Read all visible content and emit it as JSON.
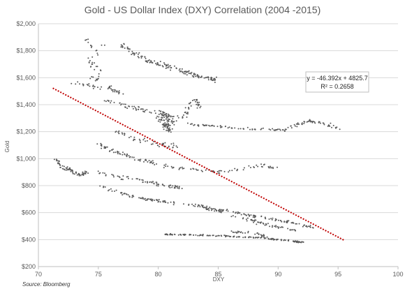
{
  "chart_data": {
    "type": "scatter",
    "title": "Gold - US Dollar Index (DXY) Correlation (2004 -2015)",
    "xlabel": "DXY",
    "ylabel": "Gold",
    "xlim": [
      70,
      100
    ],
    "ylim": [
      200,
      2000
    ],
    "x_ticks": [
      "70",
      "75",
      "80",
      "85",
      "90",
      "95",
      "100"
    ],
    "y_ticks": [
      "$200",
      "$400",
      "$600",
      "$800",
      "$1,000",
      "$1,200",
      "$1,400",
      "$1,600",
      "$1,800",
      "$2,000"
    ],
    "grid": "horizontal",
    "point_color": "#595959",
    "trendline": {
      "equation": "y = -46.392x + 4825.7",
      "r_squared": "R² = 0.2658",
      "slope": -46.392,
      "intercept": 4825.7,
      "x_range": [
        71.2,
        95.5
      ],
      "color": "#c00000",
      "style": "dotted"
    },
    "source": "Source: Bloomberg",
    "clusters": [
      {
        "points": [
          [
            74.0,
            1880
          ],
          [
            74.5,
            1830
          ],
          [
            75.0,
            1780
          ],
          [
            74.2,
            1720
          ],
          [
            75.3,
            1650
          ],
          [
            74.7,
            1580
          ],
          [
            74.3,
            1620
          ],
          [
            75.5,
            1860
          ]
        ],
        "spread": [
          0.3,
          30
        ],
        "count": 40
      },
      {
        "points": [
          [
            77.0,
            1840
          ],
          [
            78.0,
            1780
          ],
          [
            79.0,
            1730
          ],
          [
            80.0,
            1700
          ],
          [
            81.0,
            1680
          ],
          [
            82.0,
            1650
          ],
          [
            83.0,
            1620
          ],
          [
            84.0,
            1600
          ],
          [
            85.0,
            1580
          ]
        ],
        "spread": [
          0.35,
          25
        ],
        "count": 150
      },
      {
        "points": [
          [
            73.0,
            1560
          ],
          [
            74.5,
            1540
          ],
          [
            76.0,
            1520
          ],
          [
            77.0,
            1480
          ]
        ],
        "spread": [
          0.4,
          25
        ],
        "count": 40
      },
      {
        "points": [
          [
            75.5,
            1440
          ],
          [
            77.0,
            1400
          ],
          [
            78.5,
            1370
          ],
          [
            80.0,
            1330
          ],
          [
            81.0,
            1310
          ],
          [
            82.0,
            1300
          ],
          [
            83.0,
            1440
          ],
          [
            83.5,
            1380
          ]
        ],
        "spread": [
          0.4,
          25
        ],
        "count": 100
      },
      {
        "points": [
          [
            79.8,
            1320
          ],
          [
            80.3,
            1280
          ],
          [
            80.6,
            1240
          ],
          [
            81.0,
            1210
          ],
          [
            80.2,
            1350
          ],
          [
            81.4,
            1260
          ]
        ],
        "spread": [
          0.35,
          40
        ],
        "count": 90
      },
      {
        "points": [
          [
            82.0,
            1260
          ],
          [
            83.5,
            1250
          ],
          [
            85.0,
            1240
          ],
          [
            86.5,
            1230
          ],
          [
            88.0,
            1220
          ],
          [
            89.5,
            1215
          ],
          [
            90.5,
            1210
          ],
          [
            91.5,
            1250
          ],
          [
            92.5,
            1280
          ],
          [
            94.0,
            1260
          ],
          [
            95.0,
            1220
          ]
        ],
        "spread": [
          0.45,
          15
        ],
        "count": 120
      },
      {
        "points": [
          [
            76.5,
            1200
          ],
          [
            78.0,
            1150
          ],
          [
            79.5,
            1120
          ],
          [
            80.5,
            1100
          ],
          [
            81.5,
            1090
          ]
        ],
        "spread": [
          0.4,
          25
        ],
        "count": 50
      },
      {
        "points": [
          [
            71.5,
            990
          ],
          [
            72.0,
            940
          ],
          [
            72.5,
            920
          ],
          [
            73.0,
            900
          ],
          [
            73.5,
            880
          ],
          [
            74.0,
            900
          ]
        ],
        "spread": [
          0.35,
          20
        ],
        "count": 70
      },
      {
        "points": [
          [
            75.0,
            1110
          ],
          [
            76.0,
            1060
          ],
          [
            77.0,
            1040
          ],
          [
            78.0,
            1000
          ],
          [
            79.0,
            980
          ],
          [
            80.0,
            960
          ],
          [
            81.0,
            940
          ],
          [
            82.5,
            925
          ],
          [
            84.0,
            910
          ],
          [
            85.5,
            900
          ],
          [
            87.0,
            930
          ],
          [
            88.5,
            950
          ],
          [
            90.0,
            930
          ]
        ],
        "spread": [
          0.4,
          20
        ],
        "count": 130
      },
      {
        "points": [
          [
            75.0,
            900
          ],
          [
            76.0,
            880
          ],
          [
            77.0,
            860
          ],
          [
            78.0,
            850
          ],
          [
            79.0,
            830
          ],
          [
            80.0,
            810
          ],
          [
            81.0,
            800
          ],
          [
            82.0,
            780
          ]
        ],
        "spread": [
          0.4,
          20
        ],
        "count": 70
      },
      {
        "points": [
          [
            75.0,
            800
          ],
          [
            76.5,
            760
          ],
          [
            77.5,
            730
          ],
          [
            78.5,
            710
          ],
          [
            79.5,
            690
          ],
          [
            80.5,
            680
          ],
          [
            81.5,
            670
          ],
          [
            82.5,
            660
          ],
          [
            83.5,
            650
          ],
          [
            84.5,
            620
          ],
          [
            85.5,
            600
          ]
        ],
        "spread": [
          0.4,
          15
        ],
        "count": 100
      },
      {
        "points": [
          [
            83.0,
            660
          ],
          [
            84.0,
            640
          ],
          [
            85.0,
            625
          ],
          [
            86.0,
            605
          ],
          [
            87.0,
            590
          ],
          [
            88.0,
            575
          ],
          [
            89.0,
            560
          ],
          [
            90.0,
            545
          ],
          [
            91.0,
            530
          ],
          [
            92.0,
            510
          ],
          [
            93.0,
            490
          ]
        ],
        "spread": [
          0.45,
          15
        ],
        "count": 100
      },
      {
        "points": [
          [
            86.0,
            580
          ],
          [
            87.0,
            555
          ],
          [
            88.0,
            540
          ],
          [
            88.5,
            520
          ],
          [
            89.5,
            500
          ],
          [
            90.5,
            480
          ],
          [
            91.5,
            470
          ]
        ],
        "spread": [
          0.4,
          15
        ],
        "count": 50
      },
      {
        "points": [
          [
            80.5,
            440
          ],
          [
            82.0,
            437
          ],
          [
            83.5,
            433
          ],
          [
            85.0,
            428
          ],
          [
            86.5,
            423
          ],
          [
            88.0,
            416
          ],
          [
            89.0,
            410
          ],
          [
            90.0,
            400
          ],
          [
            91.0,
            390
          ],
          [
            92.0,
            380
          ]
        ],
        "spread": [
          0.4,
          8
        ],
        "count": 150
      },
      {
        "points": [
          [
            86.0,
            460
          ],
          [
            87.5,
            450
          ],
          [
            88.5,
            440
          ],
          [
            89.0,
            420
          ]
        ],
        "spread": [
          0.3,
          12
        ],
        "count": 30
      }
    ]
  }
}
